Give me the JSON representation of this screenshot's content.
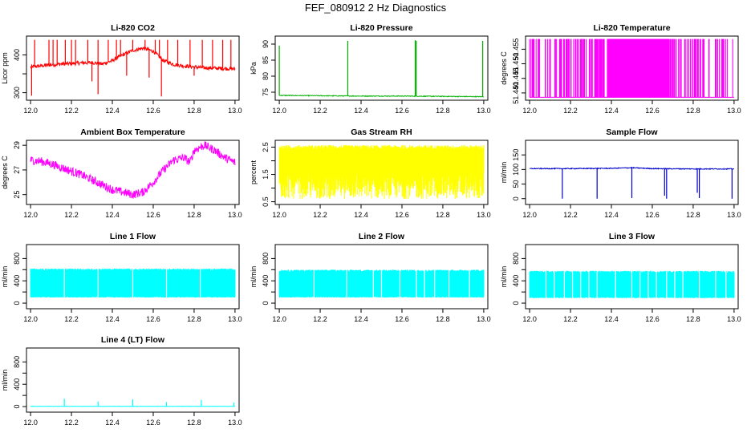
{
  "page": {
    "title": "FEF_080912  2 Hz Diagnostics"
  },
  "chart_data": [
    {
      "type": "line",
      "title": "Li-820 CO2",
      "xlabel": "",
      "ylabel": "Licor ppm",
      "xlim": [
        11.98,
        13.02
      ],
      "ylim": [
        280,
        450
      ],
      "xticks": [
        12.0,
        12.2,
        12.4,
        12.6,
        12.8,
        13.0
      ],
      "xtick_labels": [
        "12.0",
        "12.2",
        "12.4",
        "12.6",
        "12.8",
        "13.0"
      ],
      "yticks": [
        300,
        350,
        400
      ],
      "ytick_labels": [
        "300",
        "",
        "400"
      ],
      "color": "#ff0000",
      "grid": false,
      "series": [
        {
          "x": [
            12.0,
            12.05,
            12.1,
            12.15,
            12.2,
            12.25,
            12.3,
            12.35,
            12.4,
            12.45,
            12.5,
            12.55,
            12.6,
            12.65,
            12.7,
            12.75,
            12.8,
            12.85,
            12.9,
            12.95,
            13.0
          ],
          "y": [
            368,
            371,
            374,
            376,
            377,
            379,
            380,
            376,
            385,
            400,
            412,
            418,
            410,
            385,
            375,
            371,
            368,
            366,
            365,
            364,
            363
          ],
          "noise": 5,
          "spikes": [
            [
              12.02,
              440
            ],
            [
              12.09,
              440
            ],
            [
              12.11,
              440
            ],
            [
              12.13,
              440
            ],
            [
              12.17,
              440
            ],
            [
              12.2,
              440
            ],
            [
              12.22,
              440
            ],
            [
              12.28,
              440
            ],
            [
              12.33,
              440
            ],
            [
              12.38,
              440
            ],
            [
              12.42,
              440
            ],
            [
              12.44,
              440
            ],
            [
              12.5,
              440
            ],
            [
              12.56,
              440
            ],
            [
              12.61,
              440
            ],
            [
              12.63,
              440
            ],
            [
              12.67,
              440
            ],
            [
              12.72,
              440
            ],
            [
              12.78,
              440
            ],
            [
              12.84,
              440
            ],
            [
              12.89,
              440
            ],
            [
              12.94,
              440
            ],
            [
              12.98,
              440
            ],
            [
              12.005,
              292
            ],
            [
              12.33,
              296
            ],
            [
              12.64,
              290
            ],
            [
              12.3,
              330
            ],
            [
              12.47,
              345
            ],
            [
              12.58,
              340
            ],
            [
              12.8,
              345
            ]
          ]
        }
      ]
    },
    {
      "type": "line",
      "title": "Li-820 Pressure",
      "xlabel": "",
      "ylabel": "kPa",
      "xlim": [
        11.98,
        13.02
      ],
      "ylim": [
        72.5,
        92.5
      ],
      "xticks": [
        12.0,
        12.2,
        12.4,
        12.6,
        12.8,
        13.0
      ],
      "xtick_labels": [
        "12.0",
        "12.2",
        "12.4",
        "12.6",
        "12.8",
        "13.0"
      ],
      "yticks": [
        75,
        80,
        85,
        90
      ],
      "ytick_labels": [
        "75",
        "80",
        "85",
        "90"
      ],
      "color": "#00b000",
      "grid": false,
      "series": [
        {
          "x": [
            12.0,
            12.2,
            12.4,
            12.6,
            12.8,
            13.0
          ],
          "y": [
            74.0,
            73.9,
            73.8,
            73.8,
            73.7,
            73.6
          ],
          "noise": 0.12,
          "spikes": [
            [
              12.0,
              89.5
            ],
            [
              12.335,
              91.0
            ],
            [
              12.665,
              91.2
            ],
            [
              12.67,
              91.0
            ],
            [
              12.995,
              91.0
            ]
          ]
        }
      ]
    },
    {
      "type": "line",
      "title": "Li-820 Temperature",
      "xlabel": "",
      "ylabel": "degrees C",
      "xlim": [
        11.98,
        13.02
      ],
      "ylim": [
        51.4375,
        51.4595
      ],
      "xticks": [
        12.0,
        12.2,
        12.4,
        12.6,
        12.8,
        13.0
      ],
      "xtick_labels": [
        "12.0",
        "12.2",
        "12.4",
        "12.6",
        "12.8",
        "13.0"
      ],
      "yticks": [
        51.44,
        51.445,
        51.45,
        51.455
      ],
      "ytick_labels": [
        "51.440",
        "51.445",
        "51.450",
        "51.455"
      ],
      "color": "#ff00ff",
      "grid": false,
      "series": [
        {
          "binary_levels": [
            51.4385,
            51.4585
          ],
          "dense_start": 12.38,
          "dense_end": 12.68
        }
      ]
    },
    {
      "type": "line",
      "title": "Ambient Box Temperature",
      "xlabel": "",
      "ylabel": "degrees C",
      "xlim": [
        11.98,
        13.02
      ],
      "ylim": [
        24.2,
        29.4
      ],
      "xticks": [
        12.0,
        12.2,
        12.4,
        12.6,
        12.8,
        13.0
      ],
      "xtick_labels": [
        "12.0",
        "12.2",
        "12.4",
        "12.6",
        "12.8",
        "13.0"
      ],
      "yticks": [
        25,
        27,
        29
      ],
      "ytick_labels": [
        "25",
        "27",
        "29"
      ],
      "color": "#ff00ff",
      "grid": false,
      "series": [
        {
          "x": [
            12.0,
            12.05,
            12.1,
            12.15,
            12.2,
            12.25,
            12.3,
            12.35,
            12.4,
            12.45,
            12.5,
            12.55,
            12.6,
            12.65,
            12.7,
            12.75,
            12.78,
            12.8,
            12.85,
            12.9,
            12.95,
            13.0
          ],
          "y": [
            27.8,
            27.7,
            27.5,
            27.2,
            26.9,
            26.6,
            26.2,
            25.8,
            25.4,
            25.2,
            25.0,
            25.2,
            26.0,
            27.0,
            27.8,
            28.0,
            27.6,
            28.6,
            29.0,
            28.6,
            28.0,
            27.6
          ],
          "noise": 0.35,
          "spikes": []
        }
      ]
    },
    {
      "type": "line",
      "title": "Gas Stream RH",
      "xlabel": "",
      "ylabel": "percent",
      "xlim": [
        11.98,
        13.02
      ],
      "ylim": [
        0.4,
        2.75
      ],
      "xticks": [
        12.0,
        12.2,
        12.4,
        12.6,
        12.8,
        13.0
      ],
      "xtick_labels": [
        "12.0",
        "12.2",
        "12.4",
        "12.6",
        "12.8",
        "13.0"
      ],
      "yticks": [
        0.5,
        1.0,
        1.5,
        2.0,
        2.5
      ],
      "ytick_labels": [
        "0.5",
        "",
        "1.5",
        "",
        "2.5"
      ],
      "color": "#ffff00",
      "grid": false,
      "series": [
        {
          "band_top": 2.45,
          "band_bottom": 0.6,
          "core_low": 1.7
        }
      ]
    },
    {
      "type": "line",
      "title": "Sample Flow",
      "xlabel": "",
      "ylabel": "ml/min",
      "xlim": [
        11.98,
        13.02
      ],
      "ylim": [
        -20,
        200
      ],
      "xticks": [
        12.0,
        12.2,
        12.4,
        12.6,
        12.8,
        13.0
      ],
      "xtick_labels": [
        "12.0",
        "12.2",
        "12.4",
        "12.6",
        "12.8",
        "13.0"
      ],
      "yticks": [
        0,
        50,
        100,
        150
      ],
      "ytick_labels": [
        "0",
        "50",
        "100",
        "150"
      ],
      "color": "#0000cc",
      "grid": false,
      "series": [
        {
          "x": [
            12.0,
            12.2,
            12.4,
            12.5,
            12.6,
            12.8,
            13.0
          ],
          "y": [
            103,
            103,
            104,
            106,
            103,
            102,
            102
          ],
          "noise": 1.5,
          "spikes": [
            [
              12.16,
              0
            ],
            [
              12.33,
              0
            ],
            [
              12.5,
              2
            ],
            [
              12.67,
              0
            ],
            [
              12.83,
              2
            ],
            [
              12.99,
              0
            ],
            [
              12.66,
              10
            ],
            [
              12.82,
              20
            ]
          ]
        }
      ]
    },
    {
      "type": "line",
      "title": "Line 1 Flow",
      "xlabel": "",
      "ylabel": "ml/min",
      "xlim": [
        11.98,
        13.02
      ],
      "ylim": [
        -100,
        1050
      ],
      "xticks": [
        12.0,
        12.2,
        12.4,
        12.6,
        12.8,
        13.0
      ],
      "xtick_labels": [
        "12.0",
        "12.2",
        "12.4",
        "12.6",
        "12.8",
        "13.0"
      ],
      "yticks": [
        0,
        200,
        400,
        600,
        800
      ],
      "ytick_labels": [
        "0",
        "",
        "400",
        "",
        "800"
      ],
      "color": "#00ffff",
      "grid": false,
      "series": [
        {
          "band_top": 600,
          "band_bottom": 110,
          "gaps": [
            12.165,
            12.33,
            12.5,
            12.665,
            12.83
          ]
        }
      ]
    },
    {
      "type": "line",
      "title": "Line 2 Flow",
      "xlabel": "",
      "ylabel": "ml/min",
      "xlim": [
        11.98,
        13.02
      ],
      "ylim": [
        -100,
        1050
      ],
      "xticks": [
        12.0,
        12.2,
        12.4,
        12.6,
        12.8,
        13.0
      ],
      "xtick_labels": [
        "12.0",
        "12.2",
        "12.4",
        "12.6",
        "12.8",
        "13.0"
      ],
      "yticks": [
        0,
        200,
        400,
        600,
        800
      ],
      "ytick_labels": [
        "0",
        "",
        "400",
        "",
        "800"
      ],
      "color": "#00ffff",
      "grid": false,
      "series": [
        {
          "band_top": 580,
          "band_bottom": 110,
          "gaps": [
            12.17,
            12.33,
            12.46,
            12.5,
            12.59,
            12.67,
            12.71,
            12.76,
            12.83,
            12.93
          ]
        }
      ]
    },
    {
      "type": "line",
      "title": "Line 3 Flow",
      "xlabel": "",
      "ylabel": "ml/min",
      "xlim": [
        11.98,
        13.02
      ],
      "ylim": [
        -100,
        1050
      ],
      "xticks": [
        12.0,
        12.2,
        12.4,
        12.6,
        12.8,
        13.0
      ],
      "xtick_labels": [
        "12.0",
        "12.2",
        "12.4",
        "12.6",
        "12.8",
        "13.0"
      ],
      "yticks": [
        0,
        200,
        400,
        600,
        800
      ],
      "ytick_labels": [
        "0",
        "",
        "400",
        "",
        "800"
      ],
      "color": "#00ffff",
      "grid": false,
      "series": [
        {
          "band_top": 560,
          "band_bottom": 100,
          "gaps": [
            12.08,
            12.12,
            12.17,
            12.21,
            12.25,
            12.29,
            12.33,
            12.42,
            12.5,
            12.54,
            12.58,
            12.62,
            12.67,
            12.71,
            12.75,
            12.83,
            12.91,
            12.96
          ]
        }
      ]
    },
    {
      "type": "line",
      "title": "Line 4 (LT) Flow",
      "xlabel": "",
      "ylabel": "ml/min",
      "xlim": [
        11.98,
        13.02
      ],
      "ylim": [
        -100,
        1050
      ],
      "xticks": [
        12.0,
        12.2,
        12.4,
        12.6,
        12.8,
        13.0
      ],
      "xtick_labels": [
        "12.0",
        "12.2",
        "12.4",
        "12.6",
        "12.8",
        "13.0"
      ],
      "yticks": [
        0,
        200,
        400,
        600,
        800
      ],
      "ytick_labels": [
        "0",
        "",
        "400",
        "",
        "800"
      ],
      "color": "#00ffff",
      "grid": false,
      "series": [
        {
          "x": [
            12.0,
            13.0
          ],
          "y": [
            5,
            5
          ],
          "noise": 3,
          "spikes": [
            [
              12.165,
              140
            ],
            [
              12.33,
              90
            ],
            [
              12.5,
              130
            ],
            [
              12.665,
              80
            ],
            [
              12.835,
              120
            ],
            [
              12.995,
              70
            ]
          ]
        }
      ]
    }
  ]
}
